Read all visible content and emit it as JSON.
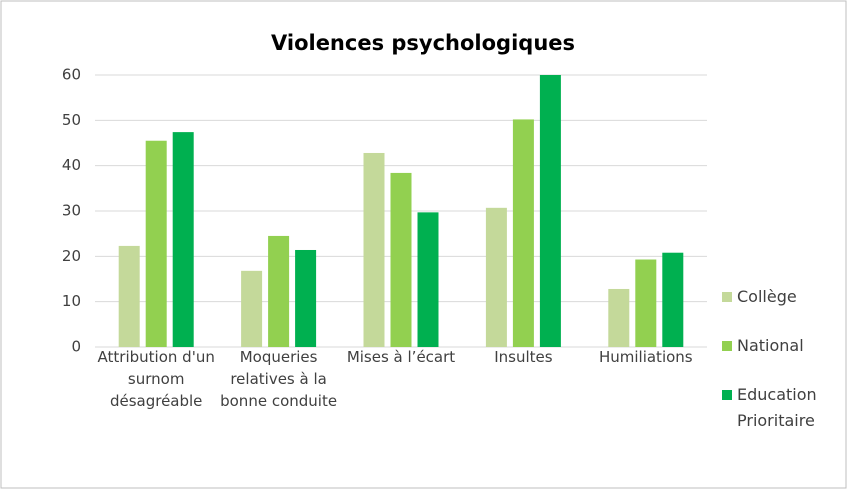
{
  "chart_data": {
    "type": "bar",
    "title": "Violences psychologiques",
    "categories": [
      "Attribution d'un surnom désagréable",
      "Moqueries relatives à la bonne conduite",
      "Mises à l’écart",
      "Insultes",
      "Humiliations"
    ],
    "series": [
      {
        "name": "Collège",
        "color": "#c4d99a",
        "values": [
          22.3,
          16.8,
          42.8,
          30.7,
          12.8
        ]
      },
      {
        "name": "National",
        "color": "#92d050",
        "values": [
          45.5,
          24.5,
          38.4,
          50.2,
          19.3
        ]
      },
      {
        "name": "Education Prioritaire",
        "color": "#00b050",
        "values": [
          47.4,
          21.4,
          29.7,
          60,
          20.8
        ]
      }
    ],
    "ylim": [
      0,
      60
    ],
    "yticks": [
      0,
      10,
      20,
      30,
      40,
      50,
      60
    ],
    "grid": true,
    "legend": "right"
  }
}
